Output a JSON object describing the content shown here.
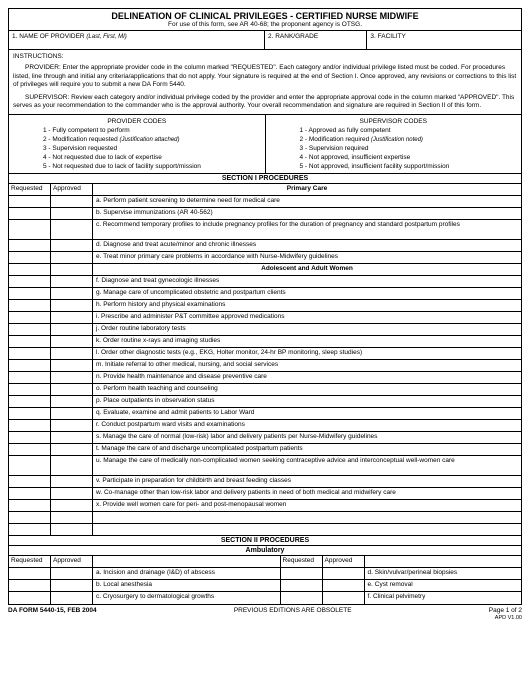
{
  "title": "DELINEATION OF CLINICAL PRIVILEGES - CERTIFIED NURSE MIDWIFE",
  "subtitle": "For use of this form, see AR 40-68; the proponent agency is OTSG.",
  "header_fields": [
    {
      "num": "1.",
      "label": "NAME OF PROVIDER",
      "note": "(Last, First, MI)",
      "width": "50%"
    },
    {
      "num": "2.",
      "label": "RANK/GRADE",
      "note": "",
      "width": "20%"
    },
    {
      "num": "3.",
      "label": "FACILITY",
      "note": "",
      "width": "30%"
    }
  ],
  "instructions_label": "INSTRUCTIONS:",
  "instructions_provider": "PROVIDER:  Enter the appropriate provider code in the column marked \"REQUESTED\".  Each category and/or individual privilege listed must be coded.  For procedures listed, line through and initial any criteria/applications that do not apply.  Your signature is required at the end of Section I.  Once approved, any revisions or corrections to this list of privileges will require you to submit a new DA Form 5440.",
  "instructions_supervisor": "SUPERVISOR:  Review each category and/or individual privilege coded by the provider and enter the appropriate  approval code in the column marked \"APPROVED\".  This serves as your recommendation to the commander who is the approval authority.  Your overall recommendation and signature are required in Section II of this form.",
  "codes": {
    "provider_header": "PROVIDER CODES",
    "supervisor_header": "SUPERVISOR CODES",
    "provider": [
      "1 - Fully competent to perform",
      "2 - Modification requested",
      "3 - Supervision requested",
      "4 - Not requested due to lack of expertise",
      "5 - Not requested due to lack of facility support/mission"
    ],
    "provider_notes": [
      "",
      " (Justification attached)",
      "",
      "",
      ""
    ],
    "supervisor": [
      "1 - Approved as fully competent",
      "2 - Modification required",
      "3 - Supervision required",
      "4 - Not approved, insufficient expertise",
      "5 - Not approved, insufficient facility support/mission"
    ],
    "supervisor_notes": [
      "",
      " (Justification noted)",
      "",
      "",
      ""
    ]
  },
  "section1_title": "SECTION I PROCEDURES",
  "col_requested": "Requested",
  "col_approved": "Approved",
  "primary_care_title": "Primary Care",
  "primary_care_items": [
    {
      "k": "a.",
      "t": "Perform patient screening to determine need for medical care",
      "tall": false
    },
    {
      "k": "b.",
      "t": "Supervise immunizations (AR 40-562)",
      "tall": false
    },
    {
      "k": "c.",
      "t": "Recommend temporary profiles to include pregnancy profiles for the duration of pregnancy and standard postpartum profiles",
      "tall": true
    },
    {
      "k": "d.",
      "t": "Diagnose and treat acute/minor and chronic illnesses",
      "tall": false
    },
    {
      "k": "e.",
      "t": "Treat minor primary care problems in accordance with Nurse-Midwifery guidelines",
      "tall": false
    }
  ],
  "adolescent_title": "Adolescent and Adult Women",
  "adolescent_items": [
    {
      "k": "f.",
      "t": "Diagnose and treat gynecologic illnesses"
    },
    {
      "k": "g.",
      "t": "Manage care of uncomplicated obstetric and postpartum clients"
    },
    {
      "k": "h.",
      "t": "Perform history and physical examinations"
    },
    {
      "k": "i.",
      "t": "Prescribe and administer P&T committee approved medications"
    },
    {
      "k": "j.",
      "t": "Order routine laboratory tests"
    },
    {
      "k": "k.",
      "t": "Order routine x-rays and imaging studies"
    },
    {
      "k": "l.",
      "t": "Order other diagnostic tests (e.g., EKG, Holter monitor, 24-hr BP monitoring, sleep studies)"
    },
    {
      "k": "m.",
      "t": "Initiate referral to other medical, nursing, and social services"
    },
    {
      "k": "n.",
      "t": "Provide health maintenance and disease preventive care"
    },
    {
      "k": "o.",
      "t": "Perform health teaching and counseling"
    },
    {
      "k": "p.",
      "t": "Place outpatients in observation status"
    },
    {
      "k": "q.",
      "t": "Evaluate, examine and admit patients to Labor Ward"
    },
    {
      "k": "r.",
      "t": "Conduct postpartum ward visits and examinations"
    },
    {
      "k": "s.",
      "t": "Manage the care of normal (low-risk) labor and delivery patients per Nurse-Midwifery guidelines"
    },
    {
      "k": "t.",
      "t": "Manage the care of and discharge  uncomplicated postpartum patients"
    },
    {
      "k": "u.",
      "t": "Manage the care of medically non-complicated women seeking contraceptive advice and interconceptual well-women care",
      "tall": true
    },
    {
      "k": "v.",
      "t": "Participate in preparation for childbirth and breast feeding classes"
    },
    {
      "k": "w.",
      "t": "Co-manage other than low-risk labor and delivery patients in need of both medical and midwifery care"
    },
    {
      "k": "x.",
      "t": "Provide well women care for peri- and post-menopausal women"
    }
  ],
  "section2_title": "SECTION II PROCEDURES",
  "ambulatory_title": "Ambulatory",
  "section2_items": [
    {
      "l": "a.  Incision and drainage (I&D) of abscess",
      "r": "d.  Skin/vulvar/perineal biopsies"
    },
    {
      "l": "b.  Local anesthesia",
      "r": "e.  Cyst removal"
    },
    {
      "l": "c.  Cryosurgery to dermatological growths",
      "r": "f.  Clinical pelvimetry"
    }
  ],
  "footer": {
    "left": "DA FORM 5440-15, FEB 2004",
    "center": "PREVIOUS EDITIONS ARE OBSOLETE",
    "right_line1": "Page 1 of 2",
    "right_line2": "APD V1.00"
  }
}
